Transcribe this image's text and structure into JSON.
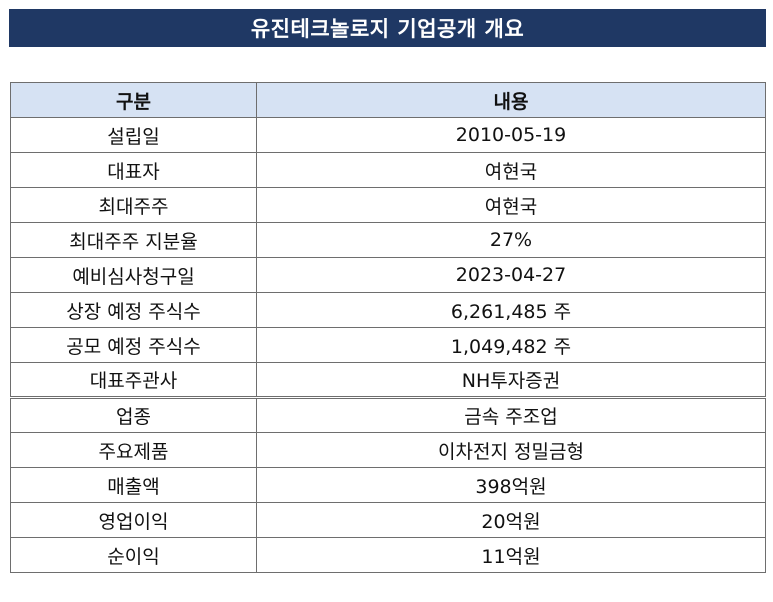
{
  "title": "유진테크놀로지 기업공개 개요",
  "table": {
    "headers": [
      "구분",
      "내용"
    ],
    "rows": [
      {
        "label": "설립일",
        "value": "2010-05-19"
      },
      {
        "label": "대표자",
        "value": "여현국"
      },
      {
        "label": "최대주주",
        "value": "여현국"
      },
      {
        "label": "최대주주 지분율",
        "value": "27%"
      },
      {
        "label": "예비심사청구일",
        "value": "2023-04-27"
      },
      {
        "label": "상장 예정 주식수",
        "value": "6,261,485 주"
      },
      {
        "label": "공모 예정 주식수",
        "value": "1,049,482 주"
      },
      {
        "label": "대표주관사",
        "value": "NH투자증권"
      },
      {
        "label": "업종",
        "value": "금속 주조업"
      },
      {
        "label": "주요제품",
        "value": "이차전지 정밀금형"
      },
      {
        "label": "매출액",
        "value": "398억원"
      },
      {
        "label": "영업이익",
        "value": "20억원"
      },
      {
        "label": "순이익",
        "value": "11억원"
      }
    ]
  },
  "colors": {
    "title_bg": "#1f3864",
    "header_bg": "#d6e2f3",
    "border": "#6e6e6e"
  }
}
